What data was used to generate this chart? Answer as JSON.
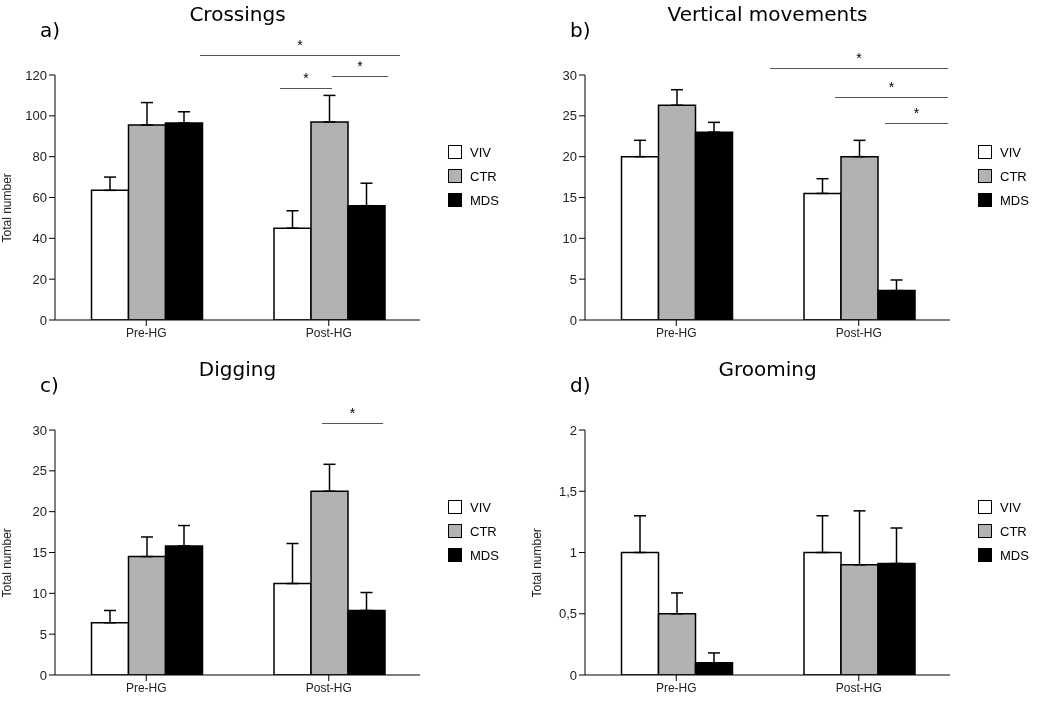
{
  "chart_data": [
    {
      "type": "bar",
      "title": "Crossings",
      "annotations": [
        "a)",
        "*",
        "*",
        "*"
      ],
      "ylabel": "Total number",
      "categories": [
        "Pre-HG",
        "Post-HG"
      ],
      "ylim": [
        0,
        120
      ],
      "yticks": [
        0,
        20,
        40,
        60,
        80,
        100,
        120
      ],
      "legend": "right",
      "grid": false,
      "series": [
        {
          "name": "VIV",
          "color": "#ffffff",
          "values": [
            63.5,
            45
          ],
          "errors": [
            [
              63.5,
              70
            ],
            [
              45,
              53.5
            ]
          ]
        },
        {
          "name": "CTR",
          "color": "#b2b2b2",
          "values": [
            95.5,
            97
          ],
          "errors": [
            [
              95.5,
              106.5
            ],
            [
              97,
              110
            ]
          ]
        },
        {
          "name": "MDS",
          "color": "#000000",
          "values": [
            96.5,
            56
          ],
          "errors": [
            [
              96.5,
              102
            ],
            [
              56,
              67
            ]
          ]
        }
      ]
    },
    {
      "type": "bar",
      "title": "Vertical movements",
      "annotations": [
        "b)",
        "*",
        "*",
        "*"
      ],
      "categories": [
        "Pre-HG",
        "Post-HG"
      ],
      "ylim": [
        0,
        30
      ],
      "yticks": [
        0,
        5,
        10,
        15,
        20,
        25,
        30
      ],
      "legend": "right",
      "grid": false,
      "series": [
        {
          "name": "VIV",
          "color": "#ffffff",
          "values": [
            20,
            15.5
          ],
          "errors": [
            [
              20,
              22
            ],
            [
              15.5,
              17.3
            ]
          ]
        },
        {
          "name": "CTR",
          "color": "#b2b2b2",
          "values": [
            26.3,
            20
          ],
          "errors": [
            [
              26.3,
              28.2
            ],
            [
              20,
              22
            ]
          ]
        },
        {
          "name": "MDS",
          "color": "#000000",
          "values": [
            23,
            3.6
          ],
          "errors": [
            [
              23,
              24.2
            ],
            [
              3.6,
              4.9
            ]
          ]
        }
      ]
    },
    {
      "type": "bar",
      "title": "Digging",
      "annotations": [
        "c)",
        "*"
      ],
      "ylabel": "Total number",
      "categories": [
        "Pre-HG",
        "Post-HG"
      ],
      "ylim": [
        0,
        30
      ],
      "yticks": [
        0,
        5,
        10,
        15,
        20,
        25,
        30
      ],
      "legend": "right",
      "grid": false,
      "series": [
        {
          "name": "VIV",
          "color": "#ffffff",
          "values": [
            6.4,
            11.2
          ],
          "errors": [
            [
              6.4,
              7.9
            ],
            [
              11.2,
              16.1
            ]
          ]
        },
        {
          "name": "CTR",
          "color": "#b2b2b2",
          "values": [
            14.5,
            22.5
          ],
          "errors": [
            [
              14.5,
              16.9
            ],
            [
              22.5,
              25.8
            ]
          ]
        },
        {
          "name": "MDS",
          "color": "#000000",
          "values": [
            15.8,
            7.9
          ],
          "errors": [
            [
              15.8,
              18.3
            ],
            [
              7.9,
              10.1
            ]
          ]
        }
      ]
    },
    {
      "type": "bar",
      "title": "Grooming",
      "annotations": [
        "d)"
      ],
      "ylabel": "Total number",
      "categories": [
        "Pre-HG",
        "Post-HG"
      ],
      "ylim": [
        0,
        2
      ],
      "yticks": [
        0,
        {
          "value": 0.5,
          "label": "0,5"
        },
        1,
        {
          "value": 1.5,
          "label": "1,5"
        },
        2
      ],
      "legend": "right",
      "grid": false,
      "series": [
        {
          "name": "VIV",
          "color": "#ffffff",
          "values": [
            1,
            1
          ],
          "errors": [
            [
              1,
              1.3
            ],
            [
              1,
              1.3
            ]
          ]
        },
        {
          "name": "CTR",
          "color": "#b2b2b2",
          "values": [
            0.5,
            0.9
          ],
          "errors": [
            [
              0.5,
              0.67
            ],
            [
              0.9,
              1.34
            ]
          ]
        },
        {
          "name": "MDS",
          "color": "#000000",
          "values": [
            0.1,
            0.91
          ],
          "errors": [
            [
              0.1,
              0.18
            ],
            [
              0.91,
              1.2
            ]
          ]
        }
      ]
    }
  ]
}
